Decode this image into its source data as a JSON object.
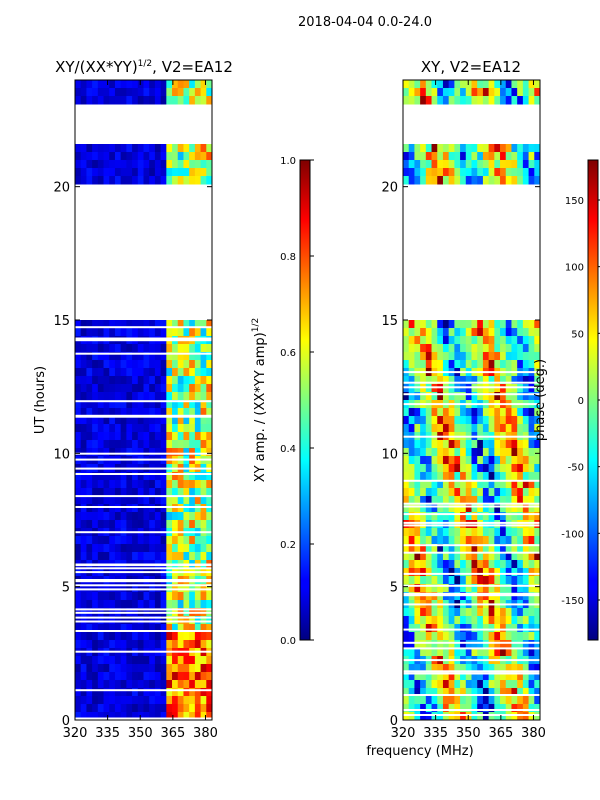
{
  "figure": {
    "suptitle": "2018-04-04 0.0-24.0",
    "shared_xlabel": "frequency (MHz)"
  },
  "chart_data": [
    {
      "type": "heatmap",
      "title": "XY/(XX*YY)^1/2, V2=EA12",
      "title_base": "XY/(XX*YY)",
      "title_sup": "1/2",
      "title_tail": ", V2=EA12",
      "ylabel": "UT (hours)",
      "xlim": [
        320,
        383
      ],
      "ylim": [
        0,
        24
      ],
      "xticks": [
        320,
        335,
        350,
        365,
        380
      ],
      "yticks": [
        0,
        5,
        10,
        15,
        20
      ],
      "colorbar": {
        "label_base": "XY amp. / (XX*YY amp)",
        "label_sup": "1/2",
        "range": [
          0.0,
          1.0
        ],
        "ticks": [
          "0.0",
          "0.2",
          "0.4",
          "0.6",
          "0.8",
          "1.0"
        ],
        "colormap": "jet"
      },
      "blank_ut_ranges": [
        [
          18.8,
          20.1
        ],
        [
          15.0,
          18.9
        ],
        [
          21.6,
          23.0
        ]
      ]
    },
    {
      "type": "heatmap",
      "title": "XY, V2=EA12",
      "xlim": [
        320,
        383
      ],
      "ylim": [
        0,
        24
      ],
      "xticks": [
        320,
        335,
        350,
        365,
        380
      ],
      "yticks": [
        0,
        5,
        10,
        15,
        20
      ],
      "colorbar": {
        "label": "phase (deg.)",
        "range": [
          -180,
          180
        ],
        "ticks": [
          "-150",
          "-100",
          "-50",
          "0",
          "50",
          "100",
          "150"
        ],
        "colormap": "jet"
      },
      "blank_ut_ranges": [
        [
          18.8,
          20.1
        ],
        [
          15.0,
          18.9
        ],
        [
          21.6,
          23.0
        ]
      ]
    }
  ]
}
